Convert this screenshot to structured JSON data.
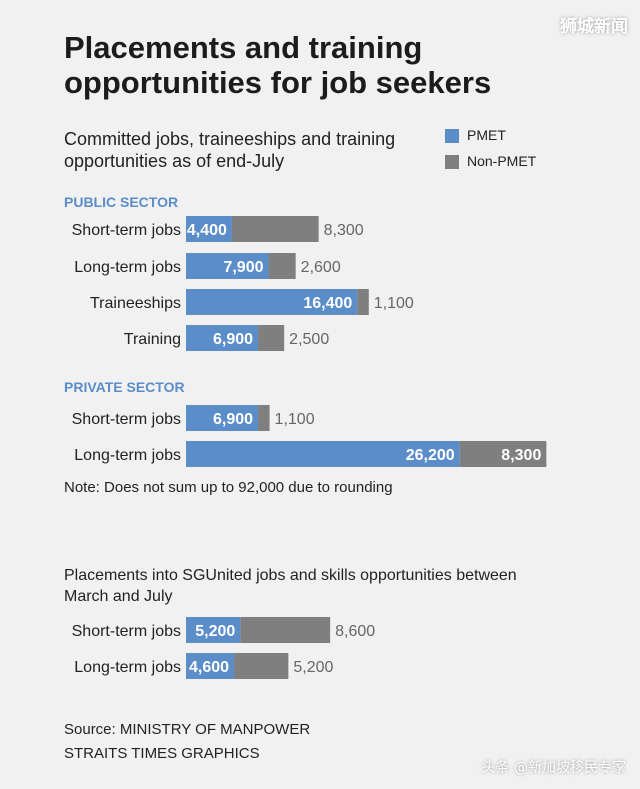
{
  "watermark_top": "狮城新闻",
  "watermark_bottom": "头条 @新加坡移民专家",
  "title": "Placements and training opportunities for job seekers",
  "subtitle": "Committed jobs, traineeships and training opportunities as of end-July",
  "legend": [
    {
      "label": "PMET",
      "color": "#5b8dc9"
    },
    {
      "label": "Non-PMET",
      "color": "#7f7f7f"
    }
  ],
  "note": "Note: Does not sum up to 92,000 due to rounding",
  "second_title": "Placements into SGUnited jobs and skills opportunities between March and July",
  "source_line1": "Source: MINISTRY OF MANPOWER",
  "source_line2": "STRAITS TIMES GRAPHICS",
  "colors": {
    "pmet": "#5b8dc9",
    "non_pmet": "#7f7f7f",
    "section": "#5b8dc9"
  },
  "chart_data": [
    {
      "type": "bar",
      "orientation": "horizontal",
      "stacked": true,
      "section": "PUBLIC SECTOR",
      "categories": [
        "Short-term jobs",
        "Long-term jobs",
        "Traineeships",
        "Training"
      ],
      "series": [
        {
          "name": "PMET",
          "values": [
            4400,
            7900,
            16400,
            6900
          ],
          "labels": [
            "4,400",
            "7,900",
            "16,400",
            "6,900"
          ]
        },
        {
          "name": "Non-PMET",
          "values": [
            8300,
            2600,
            1100,
            2500
          ],
          "labels": [
            "8,300",
            "2,600",
            "1,100",
            "2,500"
          ]
        }
      ]
    },
    {
      "type": "bar",
      "orientation": "horizontal",
      "stacked": true,
      "section": "PRIVATE SECTOR",
      "categories": [
        "Short-term jobs",
        "Long-term jobs"
      ],
      "series": [
        {
          "name": "PMET",
          "values": [
            6900,
            26200
          ],
          "labels": [
            "6,900",
            "26,200"
          ]
        },
        {
          "name": "Non-PMET",
          "values": [
            1100,
            8300
          ],
          "labels": [
            "1,100",
            "8,300"
          ]
        }
      ]
    },
    {
      "type": "bar",
      "orientation": "horizontal",
      "stacked": true,
      "section": "",
      "categories": [
        "Short-term jobs",
        "Long-term jobs"
      ],
      "series": [
        {
          "name": "PMET",
          "values": [
            5200,
            4600
          ],
          "labels": [
            "5,200",
            "4,600"
          ]
        },
        {
          "name": "Non-PMET",
          "values": [
            8600,
            5200
          ],
          "labels": [
            "8,600",
            "5,200"
          ]
        }
      ]
    }
  ]
}
